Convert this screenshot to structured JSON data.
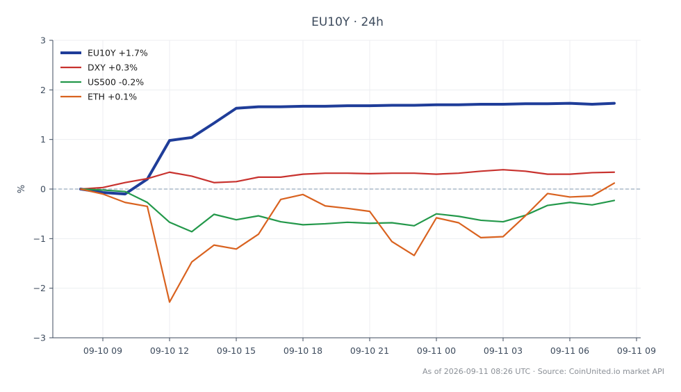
{
  "chart_data": {
    "type": "line",
    "title": "EU10Y · 24h",
    "xlabel": "",
    "ylabel": "%",
    "ylim": [
      -3,
      3
    ],
    "yticks": [
      "3",
      "2",
      "1",
      "0",
      "−1",
      "−2",
      "−3"
    ],
    "x": [
      "09-10 08",
      "09-10 09",
      "09-10 10",
      "09-10 11",
      "09-10 12",
      "09-10 13",
      "09-10 14",
      "09-10 15",
      "09-10 16",
      "09-10 17",
      "09-10 18",
      "09-10 19",
      "09-10 20",
      "09-10 21",
      "09-10 22",
      "09-10 23",
      "09-11 00",
      "09-11 01",
      "09-11 02",
      "09-11 03",
      "09-11 04",
      "09-11 05",
      "09-11 06",
      "09-11 07",
      "09-11 08"
    ],
    "xticks": [
      "09-10 09",
      "09-10 12",
      "09-10 15",
      "09-10 18",
      "09-10 21",
      "09-11 00",
      "09-11 03",
      "09-11 06",
      "09-11 09"
    ],
    "reference_line": 0,
    "grid": true,
    "legend_position": "top-left",
    "series": [
      {
        "name": "EU10Y +1.7%",
        "color": "#1f3d99",
        "width": "thick",
        "values": [
          0.0,
          -0.07,
          -0.1,
          0.2,
          0.98,
          1.04,
          1.33,
          1.63,
          1.66,
          1.66,
          1.67,
          1.67,
          1.68,
          1.68,
          1.69,
          1.69,
          1.7,
          1.7,
          1.71,
          1.71,
          1.72,
          1.72,
          1.73,
          1.71,
          1.73
        ]
      },
      {
        "name": "DXY +0.3%",
        "color": "#c8322e",
        "width": "normal",
        "values": [
          0.0,
          0.03,
          0.13,
          0.21,
          0.34,
          0.26,
          0.13,
          0.15,
          0.24,
          0.24,
          0.3,
          0.32,
          0.32,
          0.31,
          0.32,
          0.32,
          0.3,
          0.32,
          0.36,
          0.39,
          0.36,
          0.3,
          0.3,
          0.33,
          0.34
        ]
      },
      {
        "name": "US500 -0.2%",
        "color": "#23984a",
        "width": "normal",
        "values": [
          0.0,
          -0.02,
          -0.05,
          -0.27,
          -0.67,
          -0.86,
          -0.51,
          -0.62,
          -0.54,
          -0.66,
          -0.72,
          -0.7,
          -0.67,
          -0.69,
          -0.68,
          -0.74,
          -0.5,
          -0.55,
          -0.63,
          -0.66,
          -0.53,
          -0.33,
          -0.27,
          -0.32,
          -0.23
        ]
      },
      {
        "name": "ETH +0.1%",
        "color": "#d9621f",
        "width": "normal",
        "values": [
          0.0,
          -0.1,
          -0.27,
          -0.35,
          -2.28,
          -1.47,
          -1.13,
          -1.21,
          -0.91,
          -0.21,
          -0.11,
          -0.34,
          -0.39,
          -0.45,
          -1.06,
          -1.34,
          -0.58,
          -0.68,
          -0.98,
          -0.96,
          -0.54,
          -0.09,
          -0.16,
          -0.14,
          0.12
        ]
      }
    ],
    "footer": "As of 2026-09-11 08:26 UTC · Source: CoinUnited.io market API"
  },
  "colors": {
    "axis": "#3c4a5c",
    "grid": "#eceef1",
    "zero_line": "#7d96ad"
  }
}
